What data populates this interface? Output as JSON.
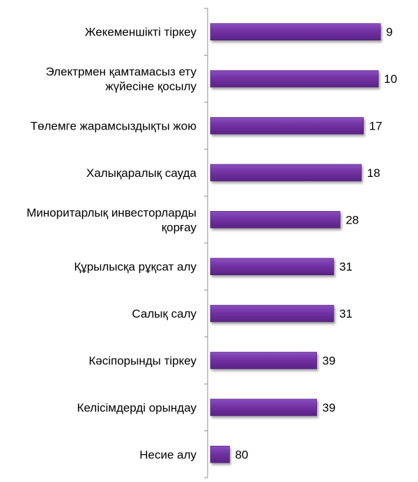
{
  "chart_data": {
    "type": "bar",
    "orientation": "horizontal",
    "title": "",
    "xlabel": "",
    "ylabel": "",
    "axis_reversed": true,
    "xlim": [
      0,
      95
    ],
    "grid": false,
    "legend": "none",
    "bar_color": "#7030A0",
    "categories": [
      "Жекеменшікті тіркеу",
      "Электрмен қамтамасыз ету жүйесіне қосылу",
      "Төлемге жарамсыздықты жою",
      "Халықаралық сауда",
      "Миноритарлық инвесторларды қорғау",
      "Құрылысқа рұқсат алу",
      "Салық салу",
      "Кәсіпорынды тіркеу",
      "Келісімдерді орындау",
      "Несие алу"
    ],
    "values": [
      9,
      10,
      17,
      18,
      28,
      31,
      31,
      39,
      39,
      80
    ]
  }
}
